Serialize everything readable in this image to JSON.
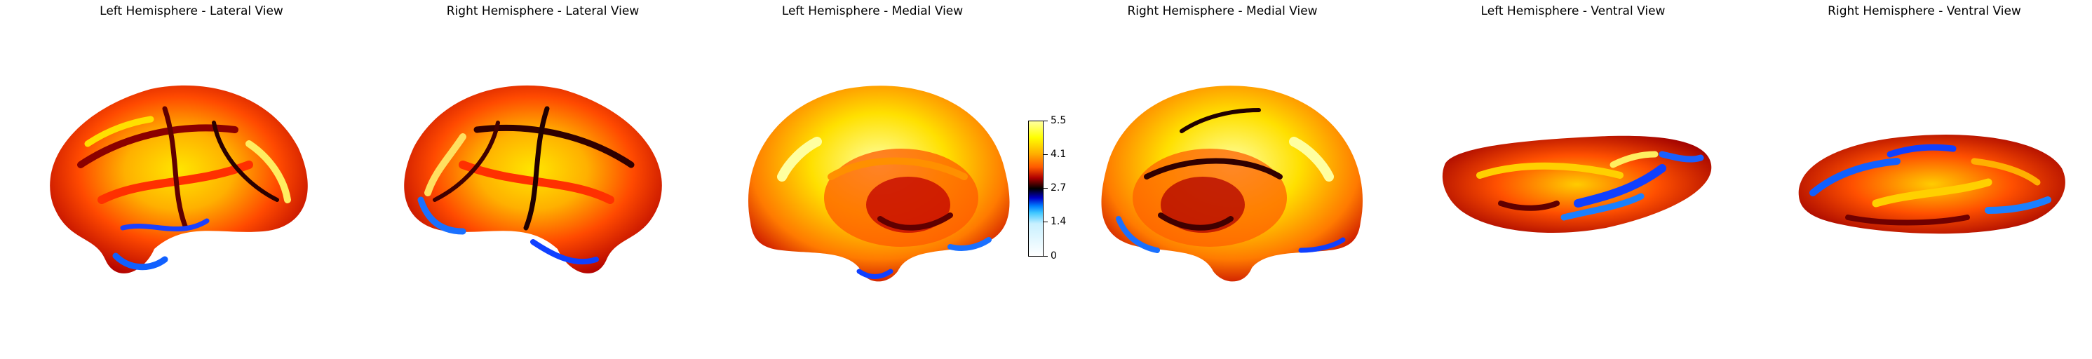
{
  "panels": [
    {
      "title": "Left Hemisphere - Lateral View"
    },
    {
      "title": "Right Hemisphere - Lateral View"
    },
    {
      "title": "Left Hemisphere - Medial View"
    },
    {
      "title": "Right Hemisphere - Medial View"
    },
    {
      "title": "Left Hemisphere - Ventral View"
    },
    {
      "title": "Right Hemisphere - Ventral View"
    }
  ],
  "colorbar": {
    "ticks": [
      "5.5",
      "4.1",
      "2.7",
      "1.4",
      "0"
    ],
    "colors": {
      "high": "#ffff00",
      "mid_high": "#ff5a00",
      "center": "#000000",
      "mid_low": "#0080ff",
      "low": "#ffffff"
    }
  }
}
